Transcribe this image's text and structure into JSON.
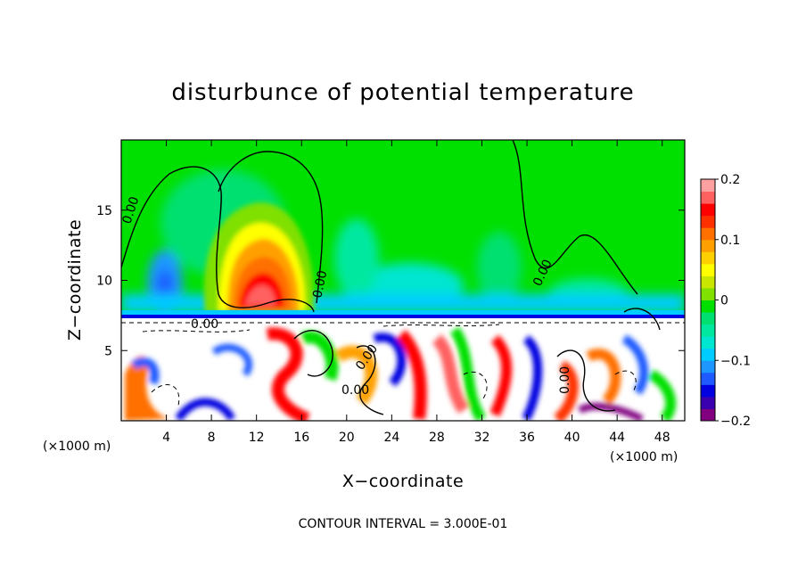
{
  "chart_data": {
    "type": "heatmap",
    "title": "disturbunce of potential temperature",
    "xlabel": "X−coordinate",
    "ylabel": "Z−coordinate",
    "x_unit_left": "(×1000 m)",
    "x_unit_right": "(×1000 m)",
    "xlim": [
      0,
      50
    ],
    "ylim": [
      0,
      20
    ],
    "xticks": [
      4,
      8,
      12,
      16,
      20,
      24,
      28,
      32,
      36,
      40,
      44,
      48
    ],
    "xtick_labels": [
      "4",
      "8",
      "12",
      "16",
      "20",
      "24",
      "28",
      "32",
      "36",
      "40",
      "44",
      "48"
    ],
    "yticks": [
      5,
      10,
      15
    ],
    "ytick_labels": [
      "5",
      "10",
      "15"
    ],
    "colorbar": {
      "range": [
        -0.2,
        0.2
      ],
      "ticks": [
        0.2,
        0.1,
        0,
        -0.1,
        -0.2
      ],
      "tick_labels": [
        "0.2",
        "0.1",
        "0",
        "−0.1",
        "−0.2"
      ],
      "colors": [
        "#800080",
        "#3a00b0",
        "#0000e0",
        "#1e5aff",
        "#1e96ff",
        "#00ccff",
        "#00e6d0",
        "#00e8a0",
        "#00e070",
        "#00e000",
        "#80e000",
        "#c8e600",
        "#ffff00",
        "#ffd000",
        "#ffa000",
        "#ff7000",
        "#ff3000",
        "#ff0000",
        "#ff6060",
        "#ffa0a0"
      ]
    },
    "contour_labels": [
      "0.00",
      "0.00",
      "0.00",
      "0.00",
      "0.00",
      "0.00",
      "0.00"
    ],
    "warm_anomaly": {
      "x_center": 12.5,
      "z_center": 10,
      "peak": 0.15
    },
    "stable_layer_height": 7.5,
    "footer": "CONTOUR INTERVAL = 3.000E-01"
  }
}
